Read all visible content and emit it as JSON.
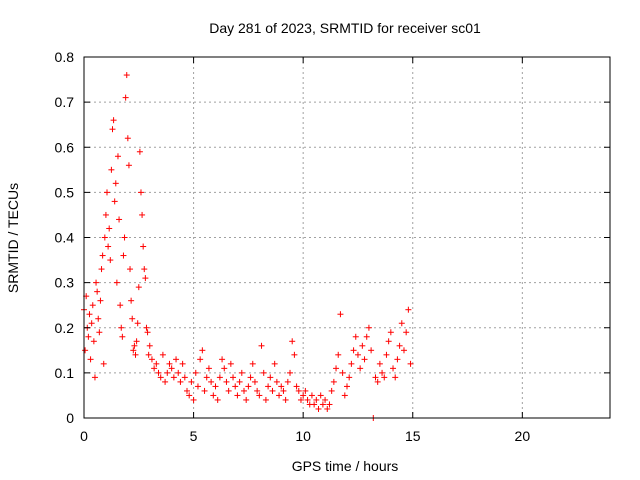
{
  "chart_data": {
    "type": "scatter",
    "title": "Day 281 of 2023, SRMTID for receiver sc01",
    "xlabel": "GPS time / hours",
    "ylabel": "SRMTID / TECUs",
    "xlim": [
      0,
      24
    ],
    "ylim": [
      0,
      0.8
    ],
    "xticks": [
      0,
      5,
      10,
      15,
      20
    ],
    "xtick_labels": [
      "0",
      "5",
      "10",
      "15",
      "20"
    ],
    "yticks": [
      0,
      0.1,
      0.2,
      0.3,
      0.4,
      0.5,
      0.6,
      0.7,
      0.8
    ],
    "ytick_labels": [
      "0",
      "0.1",
      "0.2",
      "0.3",
      "0.4",
      "0.5",
      "0.6",
      "0.7",
      "0.8"
    ],
    "grid": true,
    "marker": "+",
    "series": [
      {
        "name": "sc01",
        "color": "#ff0000",
        "points": [
          [
            0.0,
            0.24
          ],
          [
            0.05,
            0.15
          ],
          [
            0.1,
            0.27
          ],
          [
            0.15,
            0.2
          ],
          [
            0.2,
            0.18
          ],
          [
            0.25,
            0.23
          ],
          [
            0.3,
            0.13
          ],
          [
            0.35,
            0.21
          ],
          [
            0.4,
            0.25
          ],
          [
            0.45,
            0.17
          ],
          [
            0.5,
            0.09
          ],
          [
            0.55,
            0.3
          ],
          [
            0.6,
            0.28
          ],
          [
            0.65,
            0.22
          ],
          [
            0.7,
            0.19
          ],
          [
            0.75,
            0.26
          ],
          [
            0.8,
            0.33
          ],
          [
            0.85,
            0.36
          ],
          [
            0.9,
            0.12
          ],
          [
            0.95,
            0.4
          ],
          [
            1.0,
            0.45
          ],
          [
            1.05,
            0.5
          ],
          [
            1.1,
            0.38
          ],
          [
            1.15,
            0.42
          ],
          [
            1.2,
            0.35
          ],
          [
            1.25,
            0.55
          ],
          [
            1.3,
            0.64
          ],
          [
            1.35,
            0.66
          ],
          [
            1.4,
            0.48
          ],
          [
            1.45,
            0.52
          ],
          [
            1.5,
            0.3
          ],
          [
            1.55,
            0.58
          ],
          [
            1.6,
            0.44
          ],
          [
            1.65,
            0.25
          ],
          [
            1.7,
            0.2
          ],
          [
            1.75,
            0.18
          ],
          [
            1.8,
            0.36
          ],
          [
            1.85,
            0.4
          ],
          [
            1.9,
            0.71
          ],
          [
            1.95,
            0.76
          ],
          [
            2.0,
            0.62
          ],
          [
            2.05,
            0.56
          ],
          [
            2.1,
            0.33
          ],
          [
            2.15,
            0.26
          ],
          [
            2.2,
            0.22
          ],
          [
            2.25,
            0.15
          ],
          [
            2.3,
            0.16
          ],
          [
            2.35,
            0.14
          ],
          [
            2.4,
            0.17
          ],
          [
            2.45,
            0.21
          ],
          [
            2.5,
            0.29
          ],
          [
            2.55,
            0.59
          ],
          [
            2.6,
            0.5
          ],
          [
            2.65,
            0.45
          ],
          [
            2.7,
            0.38
          ],
          [
            2.75,
            0.33
          ],
          [
            2.8,
            0.31
          ],
          [
            2.85,
            0.2
          ],
          [
            2.9,
            0.19
          ],
          [
            2.95,
            0.14
          ],
          [
            3.0,
            0.16
          ],
          [
            3.1,
            0.13
          ],
          [
            3.2,
            0.11
          ],
          [
            3.3,
            0.12
          ],
          [
            3.4,
            0.1
          ],
          [
            3.5,
            0.09
          ],
          [
            3.6,
            0.14
          ],
          [
            3.7,
            0.08
          ],
          [
            3.8,
            0.1
          ],
          [
            3.9,
            0.12
          ],
          [
            4.0,
            0.11
          ],
          [
            4.1,
            0.09
          ],
          [
            4.2,
            0.13
          ],
          [
            4.3,
            0.1
          ],
          [
            4.4,
            0.08
          ],
          [
            4.5,
            0.12
          ],
          [
            4.6,
            0.09
          ],
          [
            4.7,
            0.06
          ],
          [
            4.8,
            0.05
          ],
          [
            4.9,
            0.08
          ],
          [
            5.0,
            0.04
          ],
          [
            5.1,
            0.1
          ],
          [
            5.2,
            0.07
          ],
          [
            5.3,
            0.13
          ],
          [
            5.4,
            0.15
          ],
          [
            5.5,
            0.06
          ],
          [
            5.6,
            0.09
          ],
          [
            5.7,
            0.11
          ],
          [
            5.8,
            0.08
          ],
          [
            5.9,
            0.05
          ],
          [
            6.0,
            0.07
          ],
          [
            6.1,
            0.04
          ],
          [
            6.2,
            0.09
          ],
          [
            6.3,
            0.13
          ],
          [
            6.4,
            0.11
          ],
          [
            6.5,
            0.08
          ],
          [
            6.6,
            0.06
          ],
          [
            6.7,
            0.12
          ],
          [
            6.8,
            0.09
          ],
          [
            6.9,
            0.07
          ],
          [
            7.0,
            0.05
          ],
          [
            7.1,
            0.08
          ],
          [
            7.2,
            0.1
          ],
          [
            7.3,
            0.06
          ],
          [
            7.4,
            0.04
          ],
          [
            7.5,
            0.07
          ],
          [
            7.6,
            0.09
          ],
          [
            7.7,
            0.12
          ],
          [
            7.8,
            0.08
          ],
          [
            7.9,
            0.06
          ],
          [
            8.0,
            0.05
          ],
          [
            8.1,
            0.16
          ],
          [
            8.2,
            0.1
          ],
          [
            8.3,
            0.04
          ],
          [
            8.4,
            0.07
          ],
          [
            8.5,
            0.09
          ],
          [
            8.6,
            0.06
          ],
          [
            8.7,
            0.12
          ],
          [
            8.8,
            0.08
          ],
          [
            8.9,
            0.05
          ],
          [
            9.0,
            0.07
          ],
          [
            9.1,
            0.06
          ],
          [
            9.2,
            0.04
          ],
          [
            9.3,
            0.08
          ],
          [
            9.4,
            0.1
          ],
          [
            9.5,
            0.17
          ],
          [
            9.6,
            0.14
          ],
          [
            9.7,
            0.07
          ],
          [
            9.8,
            0.06
          ],
          [
            9.9,
            0.04
          ],
          [
            10.0,
            0.05
          ],
          [
            10.1,
            0.06
          ],
          [
            10.2,
            0.04
          ],
          [
            10.3,
            0.03
          ],
          [
            10.4,
            0.05
          ],
          [
            10.5,
            0.03
          ],
          [
            10.6,
            0.04
          ],
          [
            10.7,
            0.02
          ],
          [
            10.8,
            0.05
          ],
          [
            10.9,
            0.03
          ],
          [
            11.0,
            0.04
          ],
          [
            11.1,
            0.02
          ],
          [
            11.2,
            0.03
          ],
          [
            11.3,
            0.06
          ],
          [
            11.4,
            0.08
          ],
          [
            11.5,
            0.11
          ],
          [
            11.6,
            0.14
          ],
          [
            11.7,
            0.23
          ],
          [
            11.8,
            0.1
          ],
          [
            11.9,
            0.05
          ],
          [
            12.0,
            0.07
          ],
          [
            12.1,
            0.09
          ],
          [
            12.2,
            0.12
          ],
          [
            12.3,
            0.15
          ],
          [
            12.4,
            0.18
          ],
          [
            12.5,
            0.14
          ],
          [
            12.6,
            0.11
          ],
          [
            12.7,
            0.16
          ],
          [
            12.8,
            0.13
          ],
          [
            12.9,
            0.18
          ],
          [
            13.0,
            0.2
          ],
          [
            13.1,
            0.15
          ],
          [
            13.2,
            0.0
          ],
          [
            13.3,
            0.09
          ],
          [
            13.4,
            0.08
          ],
          [
            13.5,
            0.12
          ],
          [
            13.6,
            0.1
          ],
          [
            13.7,
            0.09
          ],
          [
            13.8,
            0.14
          ],
          [
            13.9,
            0.17
          ],
          [
            14.0,
            0.19
          ],
          [
            14.1,
            0.11
          ],
          [
            14.2,
            0.09
          ],
          [
            14.3,
            0.13
          ],
          [
            14.4,
            0.16
          ],
          [
            14.5,
            0.21
          ],
          [
            14.6,
            0.15
          ],
          [
            14.7,
            0.19
          ],
          [
            14.8,
            0.24
          ],
          [
            14.9,
            0.12
          ]
        ]
      }
    ]
  }
}
